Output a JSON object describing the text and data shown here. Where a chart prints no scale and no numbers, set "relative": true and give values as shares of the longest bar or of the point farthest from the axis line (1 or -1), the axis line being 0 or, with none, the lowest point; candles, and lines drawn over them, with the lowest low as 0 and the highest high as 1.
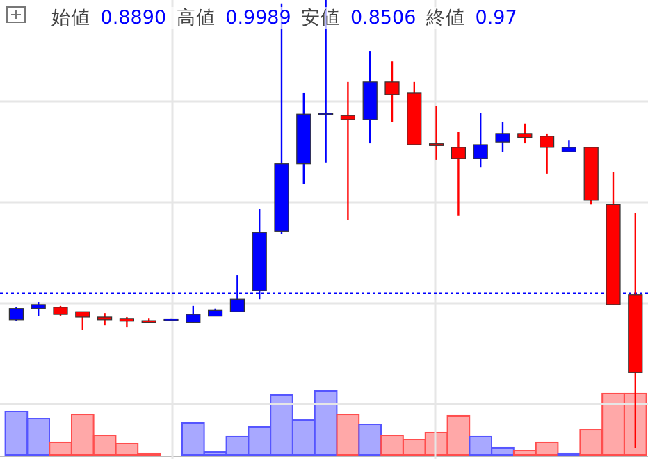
{
  "chart_data": [
    {
      "type": "candlestick",
      "relative": true,
      "grid": true,
      "categories": [
        null,
        null,
        null,
        null,
        null,
        null,
        null,
        null,
        null,
        null,
        null,
        null,
        null,
        null,
        null,
        null,
        null,
        null,
        null,
        null,
        null,
        null,
        null,
        null,
        null,
        null,
        null,
        null,
        null
      ],
      "annotations": [
        "始値",
        "0.8890",
        "高値",
        "0.9989",
        "安値",
        "0.8506",
        "終値",
        "0.97"
      ],
      "ohlc": [
        [
          0.286,
          0.314,
          0.283,
          0.311
        ],
        [
          0.311,
          0.326,
          0.295,
          0.32
        ],
        [
          0.314,
          0.317,
          0.295,
          0.298
        ],
        [
          0.304,
          0.304,
          0.264,
          0.292
        ],
        [
          0.292,
          0.301,
          0.273,
          0.286
        ],
        [
          0.289,
          0.292,
          0.27,
          0.283
        ],
        [
          0.284,
          0.29,
          0.28,
          0.28
        ],
        [
          0.284,
          0.289,
          0.283,
          0.288
        ],
        [
          0.28,
          0.317,
          0.28,
          0.298
        ],
        [
          0.294,
          0.311,
          0.294,
          0.307
        ],
        [
          0.304,
          0.385,
          0.304,
          0.332
        ],
        [
          0.351,
          0.534,
          0.332,
          0.481
        ],
        [
          0.484,
          0.991,
          0.478,
          0.634
        ],
        [
          0.634,
          0.792,
          0.59,
          0.745
        ],
        [
          0.745,
          1,
          0.637,
          0.747
        ],
        [
          0.742,
          0.817,
          0.509,
          0.733
        ],
        [
          0.733,
          0.885,
          0.68,
          0.817
        ],
        [
          0.817,
          0.863,
          0.727,
          0.789
        ],
        [
          0.792,
          0.817,
          0.677,
          0.677
        ],
        [
          0.679,
          0.764,
          0.643,
          0.675
        ],
        [
          0.671,
          0.705,
          0.519,
          0.646
        ],
        [
          0.646,
          0.748,
          0.627,
          0.677
        ],
        [
          0.683,
          0.727,
          0.661,
          0.702
        ],
        [
          0.702,
          0.724,
          0.68,
          0.693
        ],
        [
          0.696,
          0.702,
          0.612,
          0.671
        ],
        [
          0.661,
          0.686,
          0.661,
          0.671
        ],
        [
          0.671,
          0.671,
          0.543,
          0.553
        ],
        [
          0.543,
          0.615,
          0.32,
          0.32
        ],
        [
          0.342,
          0.525,
          0,
          0.168
        ]
      ],
      "colors": [
        "#0000ff",
        "#0000ff",
        "#ff0000",
        "#ff0000",
        "#ff0000",
        "#ff0000",
        "#ff0000",
        "#0000ff",
        "#0000ff",
        "#0000ff",
        "#0000ff",
        "#0000ff",
        "#0000ff",
        "#0000ff",
        "#0000ff",
        "#ff0000",
        "#0000ff",
        "#ff0000",
        "#ff0000",
        "#ff0000",
        "#ff0000",
        "#0000ff",
        "#0000ff",
        "#ff0000",
        "#ff0000",
        "#0000ff",
        "#ff0000",
        "#ff0000",
        "#ff0000"
      ],
      "ref_lines": [
        {
          "axis": "y",
          "value": 0.345,
          "color": "#0000ff",
          "line_style": "dotted"
        }
      ]
    },
    {
      "type": "bar",
      "relative": true,
      "categories": [
        null,
        null,
        null,
        null,
        null,
        null,
        null,
        null,
        null,
        null,
        null,
        null,
        null,
        null,
        null,
        null,
        null,
        null,
        null,
        null,
        null,
        null,
        null,
        null,
        null,
        null,
        null,
        null,
        null
      ],
      "values": [
        0.674,
        0.565,
        0.196,
        0.63,
        0.304,
        0.174,
        0.022,
        0,
        0.5,
        0.043,
        0.283,
        0.435,
        0.935,
        0.543,
        1,
        0.63,
        0.478,
        0.304,
        0.239,
        0.348,
        0.609,
        0.283,
        0.109,
        0.065,
        0.196,
        0.022,
        0.391,
        0.957,
        0.957
      ],
      "colors": [
        "#9999ff",
        "#9999ff",
        "#ff9999",
        "#ff9999",
        "#ff9999",
        "#ff9999",
        "#ff9999",
        "#9999ff",
        "#9999ff",
        "#9999ff",
        "#9999ff",
        "#9999ff",
        "#9999ff",
        "#9999ff",
        "#9999ff",
        "#ff9999",
        "#9999ff",
        "#ff9999",
        "#ff9999",
        "#ff9999",
        "#ff9999",
        "#9999ff",
        "#9999ff",
        "#ff9999",
        "#ff9999",
        "#9999ff",
        "#ff9999",
        "#ff9999",
        "#ff9999"
      ]
    }
  ]
}
